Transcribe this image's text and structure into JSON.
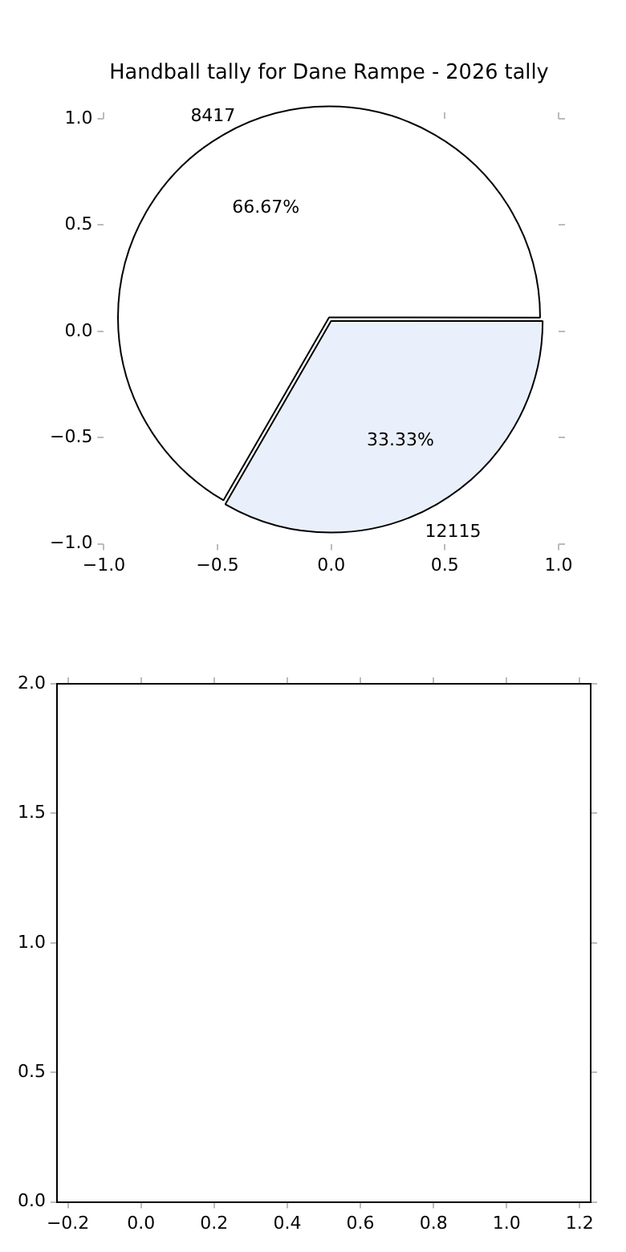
{
  "chart_data": [
    {
      "type": "pie",
      "title": "Handball tally for Dane Rampe - 2026 tally",
      "categories": [
        "8417",
        "12115"
      ],
      "values": [
        66.67,
        33.33
      ],
      "value_labels": [
        "66.67%",
        "33.33%"
      ],
      "colors": [
        "#ffffff",
        "#eaf0fb"
      ],
      "legend": false
    },
    {
      "type": "scatter",
      "xlim": [
        -1,
        1
      ],
      "ylim": [
        -1,
        1
      ],
      "xticks": [
        {
          "value": -1,
          "label": "−1.0"
        },
        -0.5,
        {
          "value": 0,
          "label": "0.0"
        },
        0.5,
        {
          "value": 1,
          "label": "1.0"
        }
      ],
      "yticks": [
        {
          "value": -1,
          "label": "−1.0"
        },
        -0.5,
        {
          "value": 0,
          "label": "0.0"
        },
        0.5,
        {
          "value": 1,
          "label": "1.0"
        }
      ]
    },
    {
      "type": "scatter",
      "xlim": [
        -0.23,
        1.23
      ],
      "ylim": [
        0,
        2
      ],
      "xticks": [
        -0.2,
        {
          "value": 0,
          "label": "0.0"
        },
        0.2,
        0.4,
        0.6,
        0.8,
        {
          "value": 1,
          "label": "1.0"
        },
        1.2
      ],
      "yticks": [
        {
          "value": 0,
          "label": "0.0"
        },
        0.5,
        {
          "value": 1,
          "label": "1.0"
        },
        1.5,
        {
          "value": 2,
          "label": "2.0"
        }
      ]
    }
  ]
}
